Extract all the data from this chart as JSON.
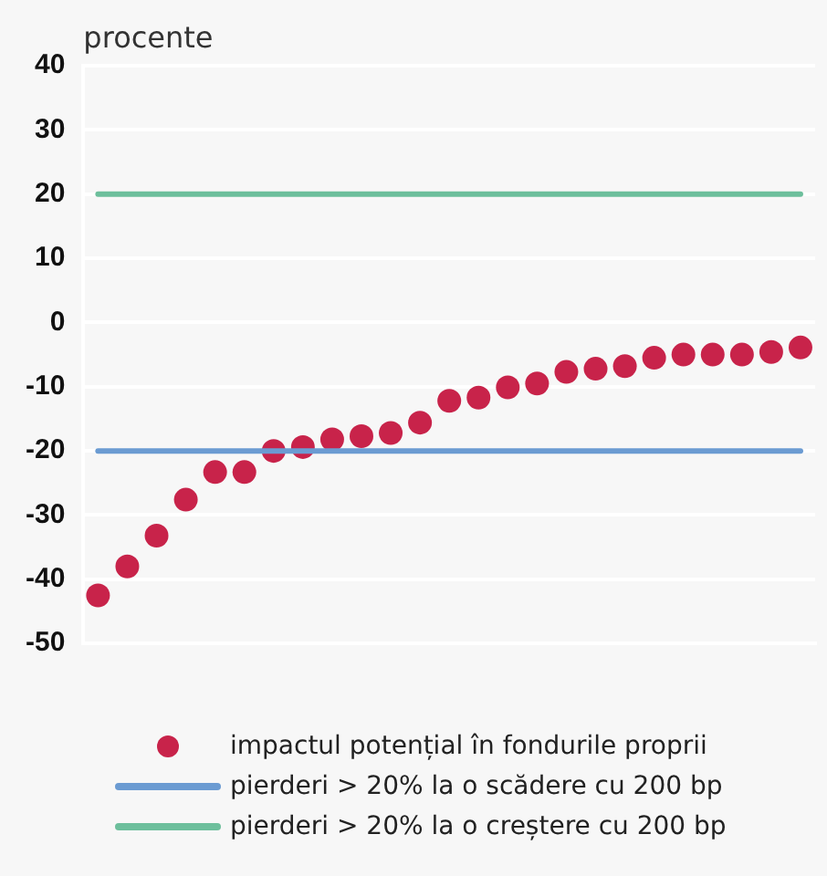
{
  "chart_data": {
    "type": "scatter",
    "ylabel": "procente",
    "categories": [
      null,
      null,
      null,
      null,
      null,
      null,
      null,
      null,
      null,
      null,
      null,
      null,
      null,
      null,
      null,
      null,
      null,
      null,
      null,
      null,
      null,
      null,
      null,
      null,
      null
    ],
    "series": [
      {
        "name": "impactul potențial în fondurile proprii",
        "marker": "circle",
        "color": "#c8234a",
        "values": [
          -42.5,
          -38,
          -33.2,
          -27.6,
          -23.3,
          -23.3,
          -20,
          -19.4,
          -18.2,
          -17.7,
          -17.2,
          -15.6,
          -12.2,
          -11.7,
          -10.1,
          -9.5,
          -7.7,
          -7.2,
          -6.8,
          -5.5,
          -5,
          -5,
          -5,
          -4.6,
          -3.9
        ]
      },
      {
        "name": "pierderi > 20% la o scădere cu 200 bp",
        "type": "line",
        "marker": "none",
        "color": "#6b9bd2",
        "values": [
          -20,
          -20,
          -20,
          -20,
          -20,
          -20,
          -20,
          -20,
          -20,
          -20,
          -20,
          -20,
          -20,
          -20,
          -20,
          -20,
          -20,
          -20,
          -20,
          -20,
          -20,
          -20,
          -20,
          -20,
          -20
        ]
      },
      {
        "name": "pierderi > 20% la o creștere cu 200 bp",
        "type": "line",
        "marker": "none",
        "color": "#6dbf9c",
        "values": [
          20,
          20,
          20,
          20,
          20,
          20,
          20,
          20,
          20,
          20,
          20,
          20,
          20,
          20,
          20,
          20,
          20,
          20,
          20,
          20,
          20,
          20,
          20,
          20,
          20
        ]
      }
    ],
    "ylim": [
      -50,
      40
    ],
    "yticks": [
      -50,
      -40,
      -30,
      -20,
      -10,
      0,
      10,
      20,
      30,
      40
    ],
    "grid": "y",
    "legend": "bottom"
  }
}
